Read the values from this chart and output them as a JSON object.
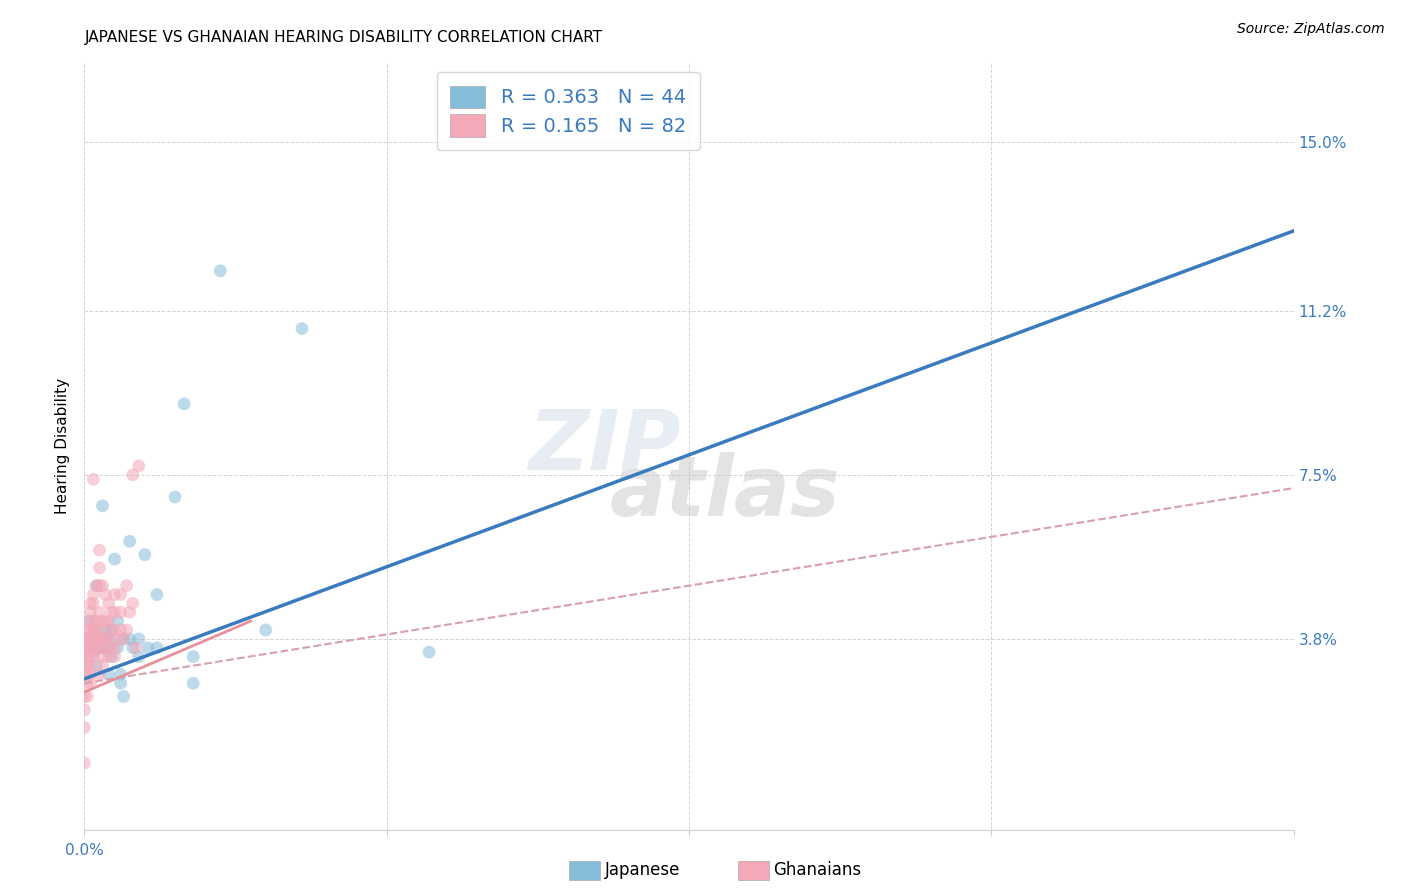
{
  "title": "JAPANESE VS GHANAIAN HEARING DISABILITY CORRELATION CHART",
  "source": "Source: ZipAtlas.com",
  "ylabel": "Hearing Disability",
  "ytick_labels": [
    "15.0%",
    "11.2%",
    "7.5%",
    "3.8%"
  ],
  "ytick_values": [
    0.15,
    0.112,
    0.075,
    0.038
  ],
  "xlim": [
    0.0,
    0.4
  ],
  "ylim": [
    -0.005,
    0.168
  ],
  "watermark_top": "ZIP",
  "watermark_bot": "atlas",
  "legend_japanese_R": "0.363",
  "legend_japanese_N": "44",
  "legend_ghanaian_R": "0.165",
  "legend_ghanaian_N": "82",
  "japanese_color": "#85bcd8",
  "ghanaian_color": "#f4a8b8",
  "trendline_japanese_color": "#3a7bbf",
  "trendline_ghanaian_color": "#e8909a",
  "trendline_ghanaian_dash_color": "#d8a0aa",
  "background_color": "#ffffff",
  "japanese_trendline": [
    0.0,
    0.029,
    0.4,
    0.13
  ],
  "ghanaian_solid_trendline": [
    0.0,
    0.026,
    0.055,
    0.042
  ],
  "ghanaian_dash_trendline": [
    0.0,
    0.028,
    0.4,
    0.072
  ],
  "japanese_points": [
    [
      0.001,
      0.036
    ],
    [
      0.001,
      0.038
    ],
    [
      0.002,
      0.038
    ],
    [
      0.002,
      0.042
    ],
    [
      0.003,
      0.035
    ],
    [
      0.003,
      0.038
    ],
    [
      0.003,
      0.04
    ],
    [
      0.004,
      0.036
    ],
    [
      0.004,
      0.032
    ],
    [
      0.004,
      0.05
    ],
    [
      0.005,
      0.036
    ],
    [
      0.006,
      0.036
    ],
    [
      0.006,
      0.068
    ],
    [
      0.007,
      0.038
    ],
    [
      0.007,
      0.04
    ],
    [
      0.008,
      0.03
    ],
    [
      0.008,
      0.036
    ],
    [
      0.009,
      0.034
    ],
    [
      0.009,
      0.038
    ],
    [
      0.009,
      0.04
    ],
    [
      0.01,
      0.056
    ],
    [
      0.011,
      0.036
    ],
    [
      0.011,
      0.042
    ],
    [
      0.012,
      0.028
    ],
    [
      0.012,
      0.03
    ],
    [
      0.013,
      0.025
    ],
    [
      0.013,
      0.038
    ],
    [
      0.015,
      0.06
    ],
    [
      0.015,
      0.038
    ],
    [
      0.016,
      0.036
    ],
    [
      0.018,
      0.038
    ],
    [
      0.018,
      0.034
    ],
    [
      0.02,
      0.057
    ],
    [
      0.021,
      0.036
    ],
    [
      0.024,
      0.048
    ],
    [
      0.024,
      0.036
    ],
    [
      0.03,
      0.07
    ],
    [
      0.033,
      0.091
    ],
    [
      0.036,
      0.028
    ],
    [
      0.036,
      0.034
    ],
    [
      0.045,
      0.121
    ],
    [
      0.06,
      0.04
    ],
    [
      0.072,
      0.108
    ],
    [
      0.114,
      0.035
    ]
  ],
  "ghanaian_points": [
    [
      0.0,
      0.01
    ],
    [
      0.0,
      0.018
    ],
    [
      0.0,
      0.022
    ],
    [
      0.0,
      0.025
    ],
    [
      0.0,
      0.03
    ],
    [
      0.0,
      0.032
    ],
    [
      0.0,
      0.034
    ],
    [
      0.0,
      0.036
    ],
    [
      0.0,
      0.038
    ],
    [
      0.0,
      0.038
    ],
    [
      0.001,
      0.025
    ],
    [
      0.001,
      0.028
    ],
    [
      0.001,
      0.03
    ],
    [
      0.001,
      0.032
    ],
    [
      0.001,
      0.034
    ],
    [
      0.001,
      0.036
    ],
    [
      0.001,
      0.038
    ],
    [
      0.001,
      0.04
    ],
    [
      0.001,
      0.042
    ],
    [
      0.002,
      0.028
    ],
    [
      0.002,
      0.03
    ],
    [
      0.002,
      0.032
    ],
    [
      0.002,
      0.034
    ],
    [
      0.002,
      0.036
    ],
    [
      0.002,
      0.038
    ],
    [
      0.002,
      0.04
    ],
    [
      0.002,
      0.044
    ],
    [
      0.002,
      0.046
    ],
    [
      0.003,
      0.034
    ],
    [
      0.003,
      0.036
    ],
    [
      0.003,
      0.038
    ],
    [
      0.003,
      0.04
    ],
    [
      0.003,
      0.042
    ],
    [
      0.003,
      0.046
    ],
    [
      0.003,
      0.048
    ],
    [
      0.003,
      0.074
    ],
    [
      0.004,
      0.036
    ],
    [
      0.004,
      0.038
    ],
    [
      0.004,
      0.04
    ],
    [
      0.004,
      0.042
    ],
    [
      0.004,
      0.05
    ],
    [
      0.005,
      0.03
    ],
    [
      0.005,
      0.036
    ],
    [
      0.005,
      0.038
    ],
    [
      0.005,
      0.04
    ],
    [
      0.005,
      0.044
    ],
    [
      0.005,
      0.05
    ],
    [
      0.005,
      0.054
    ],
    [
      0.005,
      0.058
    ],
    [
      0.006,
      0.032
    ],
    [
      0.006,
      0.034
    ],
    [
      0.006,
      0.038
    ],
    [
      0.006,
      0.042
    ],
    [
      0.006,
      0.05
    ],
    [
      0.007,
      0.036
    ],
    [
      0.007,
      0.038
    ],
    [
      0.007,
      0.042
    ],
    [
      0.007,
      0.048
    ],
    [
      0.008,
      0.034
    ],
    [
      0.008,
      0.038
    ],
    [
      0.008,
      0.042
    ],
    [
      0.008,
      0.046
    ],
    [
      0.009,
      0.036
    ],
    [
      0.009,
      0.04
    ],
    [
      0.009,
      0.044
    ],
    [
      0.01,
      0.034
    ],
    [
      0.01,
      0.036
    ],
    [
      0.01,
      0.04
    ],
    [
      0.01,
      0.044
    ],
    [
      0.01,
      0.048
    ],
    [
      0.011,
      0.038
    ],
    [
      0.012,
      0.04
    ],
    [
      0.012,
      0.044
    ],
    [
      0.012,
      0.048
    ],
    [
      0.013,
      0.038
    ],
    [
      0.014,
      0.04
    ],
    [
      0.014,
      0.05
    ],
    [
      0.015,
      0.044
    ],
    [
      0.016,
      0.046
    ],
    [
      0.016,
      0.075
    ],
    [
      0.017,
      0.036
    ],
    [
      0.018,
      0.077
    ]
  ],
  "title_fontsize": 11,
  "axis_label_fontsize": 11,
  "tick_label_fontsize": 11,
  "legend_fontsize": 14,
  "source_fontsize": 10,
  "marker_size": 85,
  "marker_alpha": 0.55,
  "grid_color": "#d0d0d0",
  "xtick_grid_vals": [
    0.0,
    0.1,
    0.2,
    0.3,
    0.4
  ]
}
